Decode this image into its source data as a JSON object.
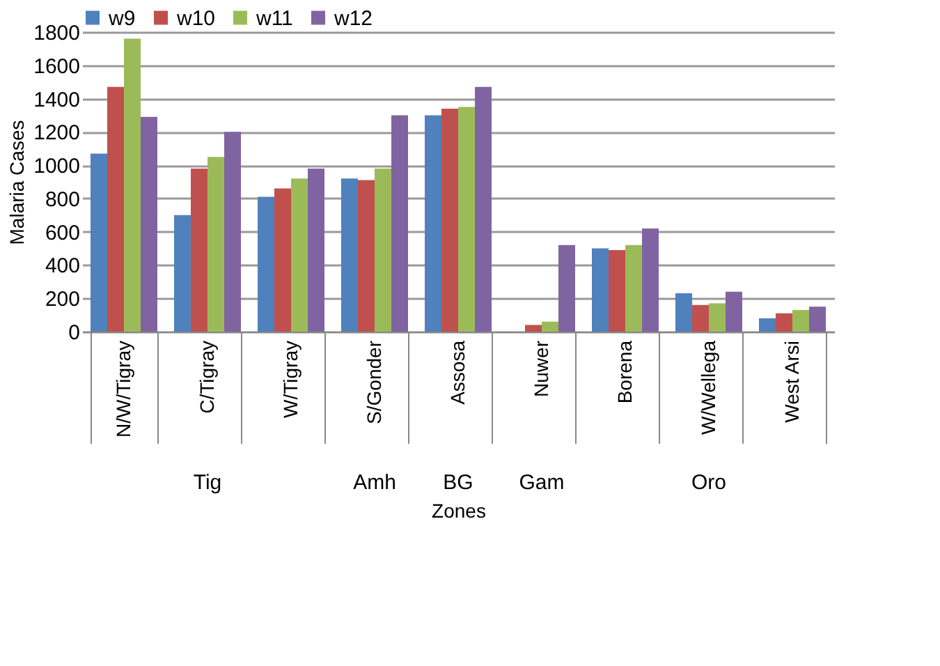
{
  "chart_data": {
    "type": "bar",
    "ylabel": "Malaria Cases",
    "xlabel": "Zones",
    "categories": [
      "N/W/Tigray",
      "C/Tigray",
      "W/Tigray",
      "S/Gonder",
      "Assosa",
      "Nuwer",
      "Borena",
      "W/Wellega",
      "West Arsi"
    ],
    "series": [
      {
        "name": "w9",
        "color": "#4f81bd",
        "values": [
          1070,
          700,
          810,
          920,
          1300,
          0,
          500,
          230,
          80
        ]
      },
      {
        "name": "w10",
        "color": "#c0504d",
        "values": [
          1470,
          980,
          860,
          910,
          1340,
          40,
          490,
          160,
          110
        ]
      },
      {
        "name": "w11",
        "color": "#9bbb59",
        "values": [
          1760,
          1050,
          920,
          980,
          1350,
          60,
          520,
          170,
          130
        ]
      },
      {
        "name": "w12",
        "color": "#8064a2",
        "values": [
          1290,
          1200,
          980,
          1300,
          1470,
          520,
          620,
          240,
          150
        ]
      }
    ],
    "annotations": [
      "Tig",
      "Amh",
      "BG",
      "Gam",
      "Oro"
    ],
    "ylim": [
      0,
      1800
    ],
    "yticks": [
      0,
      200,
      400,
      600,
      800,
      1000,
      1200,
      1400,
      1600,
      1800
    ],
    "grid": "y",
    "legend": "top"
  }
}
